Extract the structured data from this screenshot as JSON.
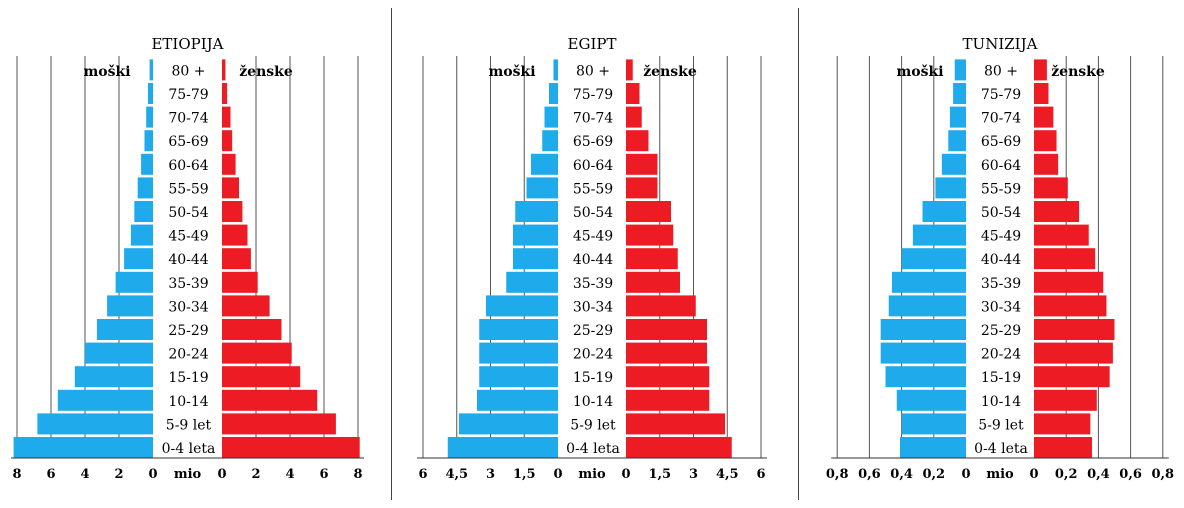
{
  "chart_data": [
    {
      "type": "bar",
      "subtype": "population-pyramid",
      "title": "ETIOPIJA",
      "left_label": "moški",
      "right_label": "ženske",
      "unit_label": "mio",
      "categories": [
        "0-4 leta",
        "5-9 let",
        "10-14",
        "15-19",
        "20-24",
        "25-29",
        "30-34",
        "35-39",
        "40-44",
        "45-49",
        "50-54",
        "55-59",
        "60-64",
        "65-69",
        "70-74",
        "75-79",
        "80 +"
      ],
      "axis_max": 8,
      "tick_values": [
        0,
        2,
        4,
        6,
        8
      ],
      "tick_labels": [
        "0",
        "2",
        "4",
        "6",
        "8"
      ],
      "colors": {
        "male": "#1eaaeb",
        "female": "#ed1c24"
      },
      "series": [
        {
          "name": "moški",
          "values": [
            8.2,
            6.8,
            5.6,
            4.6,
            4.0,
            3.3,
            2.7,
            2.2,
            1.7,
            1.3,
            1.1,
            0.9,
            0.7,
            0.5,
            0.4,
            0.3,
            0.2
          ]
        },
        {
          "name": "ženske",
          "values": [
            8.1,
            6.7,
            5.6,
            4.6,
            4.1,
            3.5,
            2.8,
            2.1,
            1.7,
            1.5,
            1.2,
            1.0,
            0.8,
            0.6,
            0.5,
            0.3,
            0.2
          ]
        }
      ]
    },
    {
      "type": "bar",
      "subtype": "population-pyramid",
      "title": "EGIPT",
      "left_label": "moški",
      "right_label": "ženske",
      "unit_label": "mio",
      "categories": [
        "0-4 leta",
        "5-9 let",
        "10-14",
        "15-19",
        "20-24",
        "25-29",
        "30-34",
        "35-39",
        "40-44",
        "45-49",
        "50-54",
        "55-59",
        "60-64",
        "65-69",
        "70-74",
        "75-79",
        "80 +"
      ],
      "axis_max": 6,
      "tick_values": [
        0,
        1.5,
        3,
        4.5,
        6
      ],
      "tick_labels": [
        "0",
        "1,5",
        "3",
        "4,5",
        "6"
      ],
      "colors": {
        "male": "#1eaaeb",
        "female": "#ed1c24"
      },
      "series": [
        {
          "name": "moški",
          "values": [
            4.9,
            4.4,
            3.6,
            3.5,
            3.5,
            3.5,
            3.2,
            2.3,
            2.0,
            2.0,
            1.9,
            1.4,
            1.2,
            0.7,
            0.6,
            0.4,
            0.2
          ]
        },
        {
          "name": "ženske",
          "values": [
            4.7,
            4.4,
            3.7,
            3.7,
            3.6,
            3.6,
            3.1,
            2.4,
            2.3,
            2.1,
            2.0,
            1.4,
            1.4,
            1.0,
            0.7,
            0.6,
            0.3
          ]
        }
      ]
    },
    {
      "type": "bar",
      "subtype": "population-pyramid",
      "title": "TUNIZIJA",
      "left_label": "moški",
      "right_label": "ženske",
      "unit_label": "mio",
      "categories": [
        "0-4 leta",
        "5-9 let",
        "10-14",
        "15-19",
        "20-24",
        "25-29",
        "30-34",
        "35-39",
        "40-44",
        "45-49",
        "50-54",
        "55-59",
        "60-64",
        "65-69",
        "70-74",
        "75-79",
        "80 +"
      ],
      "axis_max": 0.8,
      "tick_values": [
        0,
        0.2,
        0.4,
        0.6,
        0.8
      ],
      "tick_labels": [
        "0",
        "0,2",
        "0,4",
        "0,6",
        "0,8"
      ],
      "colors": {
        "male": "#1eaaeb",
        "female": "#ed1c24"
      },
      "series": [
        {
          "name": "moški",
          "values": [
            0.41,
            0.4,
            0.43,
            0.5,
            0.53,
            0.53,
            0.48,
            0.46,
            0.4,
            0.33,
            0.27,
            0.19,
            0.15,
            0.11,
            0.1,
            0.08,
            0.07
          ]
        },
        {
          "name": "ženske",
          "values": [
            0.36,
            0.35,
            0.39,
            0.47,
            0.49,
            0.5,
            0.45,
            0.43,
            0.38,
            0.34,
            0.28,
            0.21,
            0.15,
            0.14,
            0.12,
            0.09,
            0.08
          ]
        }
      ]
    }
  ]
}
